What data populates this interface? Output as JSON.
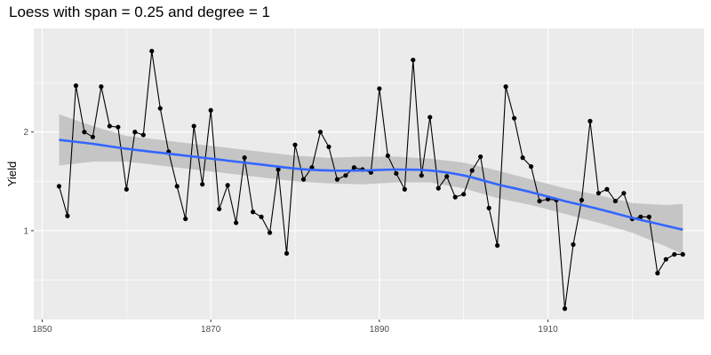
{
  "chart_data": {
    "type": "line",
    "title": "Loess with span = 0.25 and degree = 1",
    "xlabel": "",
    "ylabel": "Yield",
    "xlim": [
      1849,
      1928.5
    ],
    "ylim": [
      0.1,
      3.05
    ],
    "xticks": [
      1850,
      1870,
      1890,
      1910
    ],
    "yticks": [
      1,
      2
    ],
    "grid": true,
    "x": [
      1852,
      1853,
      1854,
      1855,
      1856,
      1857,
      1858,
      1859,
      1860,
      1861,
      1862,
      1863,
      1864,
      1865,
      1866,
      1867,
      1868,
      1869,
      1870,
      1871,
      1872,
      1873,
      1874,
      1875,
      1876,
      1877,
      1878,
      1879,
      1880,
      1881,
      1882,
      1883,
      1884,
      1885,
      1886,
      1887,
      1888,
      1889,
      1890,
      1891,
      1892,
      1893,
      1894,
      1895,
      1896,
      1897,
      1898,
      1899,
      1900,
      1901,
      1902,
      1903,
      1904,
      1905,
      1906,
      1907,
      1908,
      1909,
      1910,
      1911,
      1912,
      1913,
      1914,
      1915,
      1916,
      1917,
      1918,
      1919,
      1920,
      1921,
      1922,
      1923,
      1924,
      1925,
      1926
    ],
    "series": [
      {
        "values": [
          1.45,
          1.15,
          2.47,
          2.0,
          1.95,
          2.46,
          2.06,
          2.05,
          1.42,
          2.0,
          1.97,
          2.82,
          2.24,
          1.8,
          1.45,
          1.12,
          2.06,
          1.47,
          2.22,
          1.22,
          1.46,
          1.08,
          1.74,
          1.19,
          1.14,
          0.98,
          1.62,
          0.77,
          1.87,
          1.52,
          1.64,
          2.0,
          1.85,
          1.52,
          1.56,
          1.64,
          1.62,
          1.59,
          2.44,
          1.76,
          1.58,
          1.42,
          2.73,
          1.56,
          2.15,
          1.43,
          1.55,
          1.34,
          1.37,
          1.61,
          1.75,
          1.23,
          0.85,
          2.46,
          2.14,
          1.74,
          1.65,
          1.3,
          1.32,
          1.31,
          0.21,
          0.86,
          1.31,
          2.11,
          1.38,
          1.42,
          1.3,
          1.38,
          1.12,
          1.14,
          1.14,
          0.57,
          0.71,
          0.76,
          0.76
        ]
      }
    ],
    "smooth": {
      "method": "loess",
      "color": "#3366ff",
      "x": [
        1852,
        1856,
        1860,
        1864,
        1868,
        1872,
        1876,
        1880,
        1884,
        1888,
        1892,
        1896,
        1900,
        1904,
        1908,
        1912,
        1916,
        1920,
        1924,
        1926
      ],
      "fit": [
        1.92,
        1.88,
        1.83,
        1.79,
        1.75,
        1.71,
        1.67,
        1.63,
        1.61,
        1.61,
        1.62,
        1.61,
        1.56,
        1.47,
        1.39,
        1.3,
        1.22,
        1.13,
        1.05,
        1.01
      ],
      "lower": [
        1.66,
        1.7,
        1.7,
        1.66,
        1.62,
        1.58,
        1.54,
        1.5,
        1.48,
        1.47,
        1.49,
        1.49,
        1.43,
        1.33,
        1.26,
        1.17,
        1.08,
        0.98,
        0.84,
        0.76
      ],
      "upper": [
        2.18,
        2.06,
        1.96,
        1.92,
        1.88,
        1.84,
        1.8,
        1.76,
        1.74,
        1.75,
        1.75,
        1.73,
        1.69,
        1.61,
        1.52,
        1.43,
        1.36,
        1.28,
        1.26,
        1.27
      ]
    },
    "colors": {
      "panel": "#ebebeb",
      "grid": "#ffffff",
      "line": "#000000",
      "point": "#000000",
      "ribbon": "#bebebe"
    }
  }
}
